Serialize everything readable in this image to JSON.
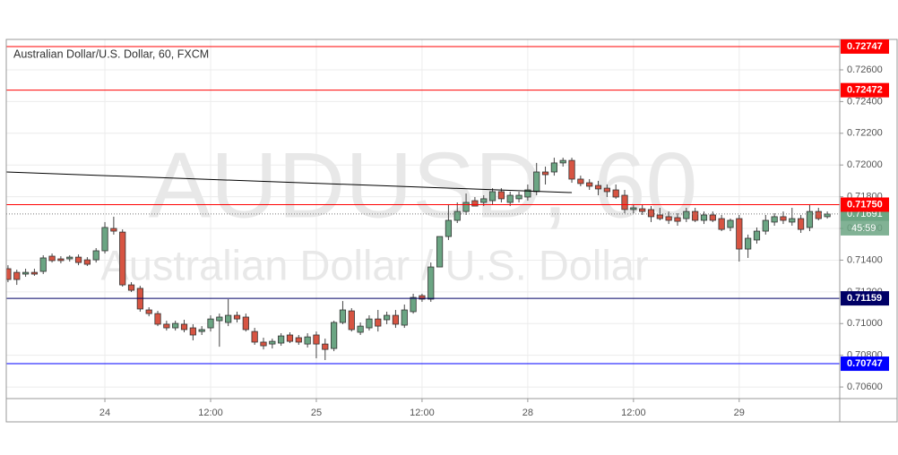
{
  "chart_data": {
    "type": "candlestick",
    "title": "Australian Dollar/U.S. Dollar, 60, FXCM",
    "watermark": "AUDUSD, 60",
    "watermark_subtitle": "Australian Dollar / U.S. Dollar",
    "categories": [
      null,
      null,
      null,
      null,
      null,
      null,
      null,
      null,
      null,
      null,
      null,
      "24",
      null,
      null,
      null,
      null,
      null,
      null,
      null,
      null,
      null,
      null,
      null,
      "12:00",
      null,
      null,
      null,
      null,
      null,
      null,
      null,
      null,
      null,
      null,
      null,
      "25",
      null,
      null,
      null,
      null,
      null,
      null,
      null,
      null,
      null,
      null,
      null,
      "12:00",
      null,
      null,
      null,
      null,
      null,
      null,
      null,
      null,
      null,
      null,
      null,
      "28",
      null,
      null,
      null,
      null,
      null,
      null,
      null,
      null,
      null,
      null,
      null,
      "12:00",
      null,
      null,
      null,
      null,
      null,
      null,
      null,
      null,
      null,
      null,
      null,
      "29",
      null,
      null,
      null,
      null,
      null,
      null,
      null,
      null,
      null,
      null
    ],
    "open": [
      0.71346,
      0.71323,
      0.71312,
      0.71323,
      0.71329,
      0.71425,
      0.71408,
      0.71408,
      0.71419,
      0.71402,
      0.71402,
      0.71459,
      0.716,
      0.71577,
      0.71244,
      0.71222,
      0.71086,
      0.71063,
      0.70996,
      0.70973,
      0.70996,
      0.70973,
      0.7095,
      0.70973,
      0.71018,
      0.71007,
      0.71052,
      0.71041,
      0.7095,
      0.70883,
      0.70871,
      0.70877,
      0.70928,
      0.70911,
      0.70871,
      0.70928,
      0.70871,
      0.70843,
      0.71007,
      0.7108,
      0.70945,
      0.70973,
      0.71029,
      0.71024,
      0.71052,
      0.7099,
      0.71075,
      0.71176,
      0.71154,
      0.71357,
      0.71549,
      0.71651,
      0.71707,
      0.71775,
      0.71764,
      0.71775,
      0.71832,
      0.71764,
      0.71787,
      0.71798,
      0.71832,
      0.71956,
      0.71956,
      0.72013,
      0.72029,
      0.71911,
      0.71888,
      0.71871,
      0.71854,
      0.71843,
      0.71809,
      0.71719,
      0.71724,
      0.71719,
      0.71685,
      0.71674,
      0.71668,
      0.71662,
      0.71707,
      0.71651,
      0.71685,
      0.71662,
      0.71606,
      0.71662,
      0.7147,
      0.71527,
      0.71583,
      0.7164,
      0.71674,
      0.7164,
      0.71662,
      0.71606,
      0.71707,
      0.71674
    ],
    "high": [
      0.71368,
      0.7134,
      0.71346,
      0.71346,
      0.71431,
      0.71442,
      0.71425,
      0.71431,
      0.71436,
      0.71419,
      0.71476,
      0.7164,
      0.71674,
      0.71594,
      0.71261,
      0.71238,
      0.71103,
      0.7108,
      0.71018,
      0.71018,
      0.71024,
      0.70996,
      0.70984,
      0.71052,
      0.71063,
      0.71154,
      0.71075,
      0.71063,
      0.70973,
      0.70911,
      0.70905,
      0.70939,
      0.70945,
      0.70928,
      0.70939,
      0.7095,
      0.70905,
      0.71018,
      0.71142,
      0.71097,
      0.71007,
      0.71052,
      0.71086,
      0.71075,
      0.71086,
      0.7112,
      0.71188,
      0.71188,
      0.71385,
      0.71549,
      0.71753,
      0.71764,
      0.7182,
      0.71798,
      0.71809,
      0.71854,
      0.71854,
      0.71832,
      0.71832,
      0.71877,
      0.72013,
      0.7199,
      0.72046,
      0.72046,
      0.72046,
      0.71933,
      0.71911,
      0.719,
      0.71877,
      0.71877,
      0.71843,
      0.71753,
      0.71753,
      0.71741,
      0.7173,
      0.71707,
      0.71696,
      0.7173,
      0.7173,
      0.71707,
      0.71707,
      0.71685,
      0.71662,
      0.71685,
      0.71561,
      0.71606,
      0.71685,
      0.71696,
      0.71707,
      0.7173,
      0.71685,
      0.71753,
      0.7173,
      0.71707
    ],
    "low": [
      0.71261,
      0.71244,
      0.71295,
      0.71301,
      0.71312,
      0.71385,
      0.7138,
      0.71391,
      0.71368,
      0.71363,
      0.71385,
      0.71442,
      0.71561,
      0.71233,
      0.71199,
      0.71075,
      0.71046,
      0.70984,
      0.70956,
      0.70956,
      0.70945,
      0.70894,
      0.70928,
      0.7095,
      0.70854,
      0.70984,
      0.71007,
      0.7095,
      0.70866,
      0.70837,
      0.70843,
      0.7086,
      0.70877,
      0.70866,
      0.70849,
      0.70781,
      0.7077,
      0.70826,
      0.70996,
      0.7095,
      0.70928,
      0.70956,
      0.7095,
      0.70996,
      0.70973,
      0.70973,
      0.71063,
      0.71137,
      0.71137,
      0.71357,
      0.71527,
      0.71634,
      0.71685,
      0.71741,
      0.71741,
      0.71753,
      0.71764,
      0.71741,
      0.71764,
      0.71775,
      0.71809,
      0.71877,
      0.71933,
      0.7199,
      0.71888,
      0.71866,
      0.71843,
      0.71809,
      0.71798,
      0.71787,
      0.71696,
      0.71696,
      0.71685,
      0.7164,
      0.71651,
      0.71628,
      0.71617,
      0.7164,
      0.7164,
      0.71628,
      0.7164,
      0.71583,
      0.71583,
      0.71391,
      0.71414,
      0.71504,
      0.71561,
      0.71617,
      0.71628,
      0.71617,
      0.71572,
      0.71583,
      0.71651,
      0.71662
    ],
    "close": [
      0.71278,
      0.71278,
      0.71323,
      0.71312,
      0.71414,
      0.71397,
      0.71397,
      0.71419,
      0.71385,
      0.71374,
      0.71459,
      0.71606,
      0.71583,
      0.71244,
      0.7121,
      0.71092,
      0.71063,
      0.70996,
      0.70973,
      0.71001,
      0.70962,
      0.70928,
      0.70962,
      0.71029,
      0.71041,
      0.71052,
      0.71029,
      0.70962,
      0.70883,
      0.7086,
      0.70888,
      0.70922,
      0.70888,
      0.70883,
      0.70916,
      0.70871,
      0.70837,
      0.71007,
      0.71086,
      0.70962,
      0.70984,
      0.71029,
      0.70984,
      0.71052,
      0.70996,
      0.71086,
      0.71165,
      0.71154,
      0.71357,
      0.71549,
      0.71651,
      0.71707,
      0.71764,
      0.71741,
      0.71787,
      0.71832,
      0.71787,
      0.71809,
      0.71809,
      0.71843,
      0.71956,
      0.71939,
      0.72013,
      0.72029,
      0.71911,
      0.71883,
      0.71866,
      0.71849,
      0.71832,
      0.71798,
      0.71719,
      0.7173,
      0.71707,
      0.71674,
      0.71662,
      0.71651,
      0.71645,
      0.71707,
      0.71651,
      0.71685,
      0.71651,
      0.71594,
      0.71651,
      0.7147,
      0.71538,
      0.71583,
      0.71651,
      0.71674,
      0.71651,
      0.71662,
      0.71594,
      0.71707,
      0.71662,
      0.71691
    ],
    "up_color": "#6ba583",
    "down_color": "#d75442",
    "ylim": [
      0.70527,
      0.72792
    ],
    "yticks": [
      {
        "value": 0.706,
        "label": "0.70600"
      },
      {
        "value": 0.708,
        "label": "0.70800"
      },
      {
        "value": 0.71,
        "label": "0.71000"
      },
      {
        "value": 0.712,
        "label": "0.71200"
      },
      {
        "value": 0.714,
        "label": "0.71400"
      },
      {
        "value": 0.716,
        "label": "0.71600"
      },
      {
        "value": 0.718,
        "label": "0.71800"
      },
      {
        "value": 0.72,
        "label": "0.72000"
      },
      {
        "value": 0.722,
        "label": "0.72200"
      },
      {
        "value": 0.724,
        "label": "0.72400"
      },
      {
        "value": 0.726,
        "label": "0.72600"
      }
    ],
    "grid": true,
    "levels": [
      {
        "value": 0.72747,
        "label": "0.72747",
        "color": "#ff0000"
      },
      {
        "value": 0.72472,
        "label": "0.72472",
        "color": "#ff0000"
      },
      {
        "value": 0.7175,
        "label": "0.71750",
        "color": "#ff0000"
      },
      {
        "value": 0.71159,
        "label": "0.71159",
        "color": "#000066"
      },
      {
        "value": 0.70747,
        "label": "0.70747",
        "color": "#0000ff"
      }
    ],
    "trendline": {
      "x": [
        -0.3,
        64
      ],
      "y": [
        0.71956,
        0.71826
      ],
      "color": "#000000"
    },
    "last": {
      "value": 0.71691,
      "label": "0.71691",
      "countdown": "45:59",
      "color": "#6ba583"
    }
  }
}
